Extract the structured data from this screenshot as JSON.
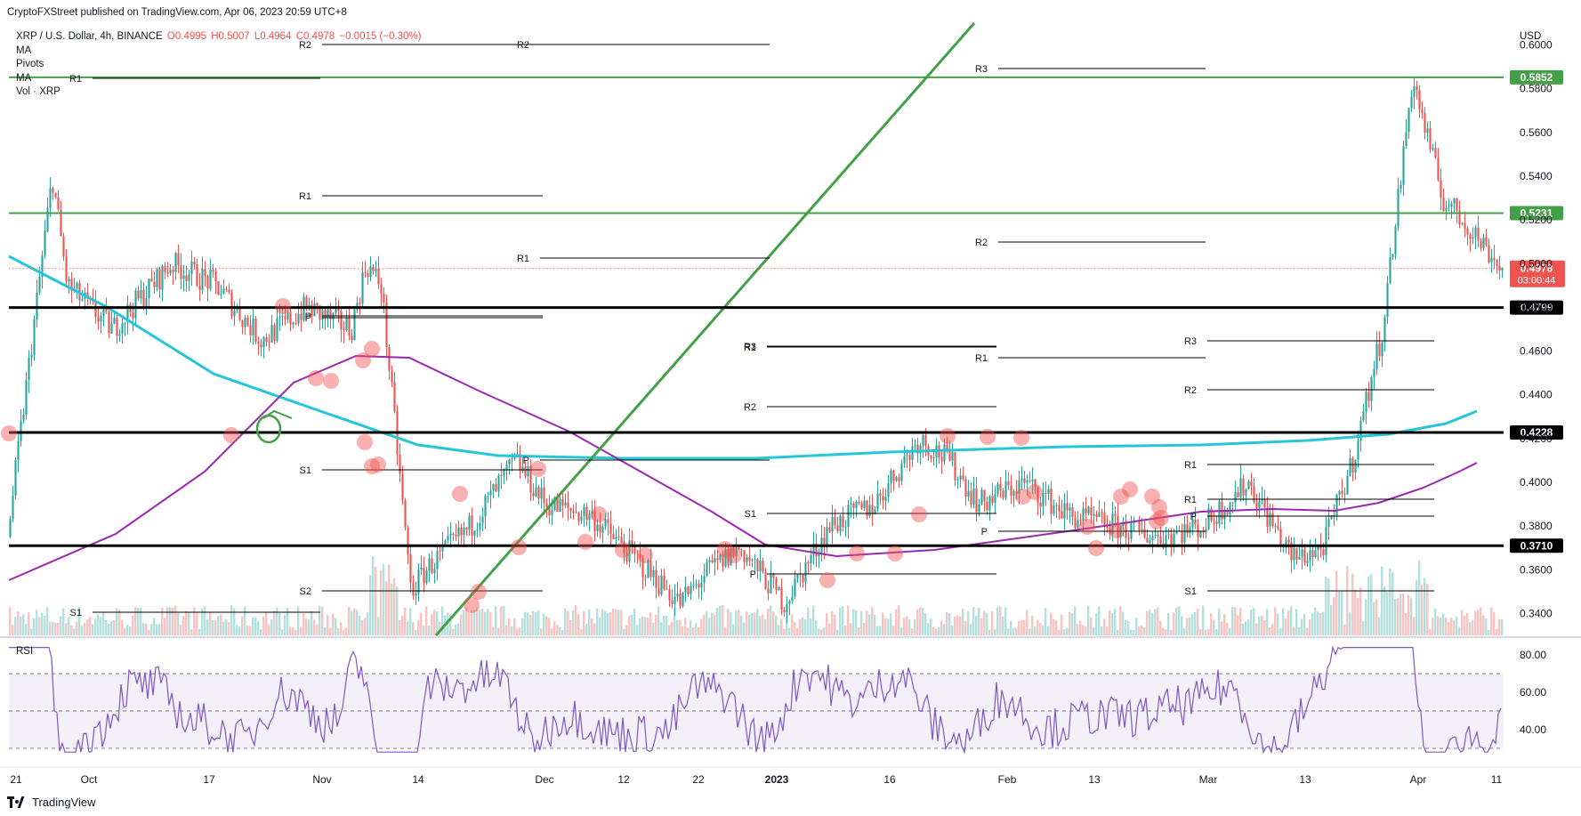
{
  "publisher": "CryptoFXStreet published on TradingView.com, Apr 06, 2023 20:59 UTC+8",
  "symbol_line": "XRP / U.S. Dollar, 4h, BINANCE",
  "ohlc": {
    "o": "O0.4995",
    "h": "H0.5007",
    "l": "L0.4964",
    "c": "C0.4978",
    "chg": "−0.0015 (−0.30%)"
  },
  "indicators": [
    "MA",
    "Pivots",
    "MA",
    "Vol · XRP"
  ],
  "currency": "USD",
  "rsi_label": "RSI",
  "brand": "TradingView",
  "colors": {
    "up": "#26a69a",
    "down": "#ef5350",
    "ma_cyan": "#26c6da",
    "ma_purple": "#9c27b0",
    "trend_green": "#43a047",
    "rsi": "#7e57c2",
    "zone": "#ef5350"
  },
  "chart_data": {
    "type": "line",
    "title": "",
    "xlabel": "",
    "ylabel": "USD",
    "ylim": [
      0.33,
      0.61
    ],
    "x_ticks": [
      "21",
      "Oct",
      "17",
      "Nov",
      "14",
      "Dec",
      "12",
      "22",
      "2023",
      "16",
      "Feb",
      "13",
      "Mar",
      "13",
      "Apr",
      "11"
    ],
    "y_ticks": [
      "0.6000",
      "0.5800",
      "0.5600",
      "0.5400",
      "0.5200",
      "0.5000",
      "0.4800",
      "0.4600",
      "0.4400",
      "0.4200",
      "0.4000",
      "0.3800",
      "0.3600",
      "0.3400"
    ],
    "price_path": {
      "t": [
        0,
        0.03,
        0.04,
        0.07,
        0.11,
        0.14,
        0.17,
        0.2,
        0.23,
        0.24,
        0.25,
        0.27,
        0.28,
        0.31,
        0.34,
        0.36,
        0.39,
        0.42,
        0.45,
        0.47,
        0.49,
        0.52,
        0.55,
        0.58,
        0.61,
        0.63,
        0.65,
        0.68,
        0.71,
        0.74,
        0.77,
        0.8,
        0.83,
        0.86,
        0.88,
        0.9,
        0.92,
        0.94,
        0.96,
        0.98,
        1.0
      ],
      "close": [
        0.375,
        0.54,
        0.49,
        0.47,
        0.5,
        0.49,
        0.465,
        0.48,
        0.47,
        0.5,
        0.49,
        0.35,
        0.36,
        0.38,
        0.41,
        0.39,
        0.385,
        0.365,
        0.345,
        0.36,
        0.37,
        0.345,
        0.38,
        0.39,
        0.42,
        0.41,
        0.39,
        0.4,
        0.385,
        0.38,
        0.375,
        0.38,
        0.4,
        0.365,
        0.37,
        0.41,
        0.47,
        0.585,
        0.53,
        0.515,
        0.4978
      ]
    },
    "horizontal_levels": [
      {
        "value": 0.5852,
        "label": "0.5852",
        "color": "#43a047"
      },
      {
        "value": 0.5231,
        "label": "0.5231",
        "color": "#43a047"
      },
      {
        "value": 0.4799,
        "label": "0.4799",
        "color": "#000000"
      },
      {
        "value": 0.4228,
        "label": "0.4228",
        "color": "#000000"
      },
      {
        "value": 0.371,
        "label": "0.3710",
        "color": "#000000"
      }
    ],
    "last_price": {
      "value": 0.4978,
      "label": "0.4978",
      "countdown": "03:00:44"
    },
    "pivot_labels": [
      "R2",
      "R2",
      "R1",
      "R3",
      "R1",
      "R1",
      "R2",
      "R1",
      "P",
      "R2",
      "R3",
      "R1",
      "R3",
      "R2",
      "R1",
      "S1",
      "P",
      "P",
      "R1",
      "P",
      "S1",
      "S2",
      "S1",
      "S1",
      "P",
      "P"
    ],
    "rsi": {
      "levels": [
        70,
        50,
        30
      ],
      "y_ticks": [
        "80.00",
        "60.00",
        "40.00"
      ]
    }
  }
}
